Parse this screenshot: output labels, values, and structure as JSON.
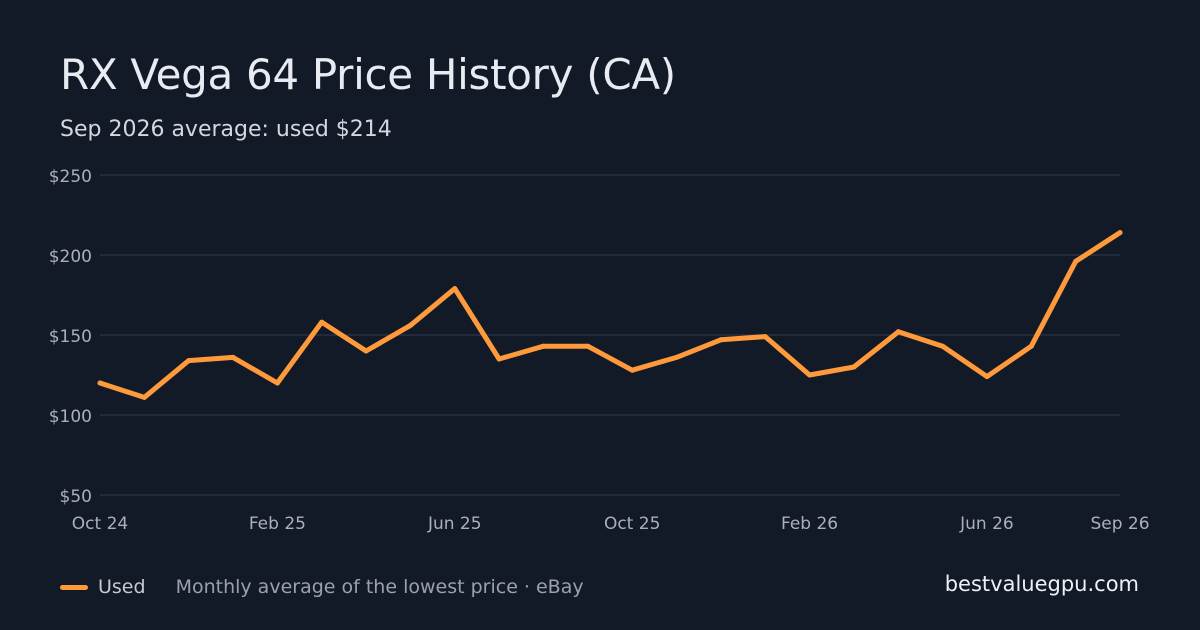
{
  "header": {
    "title": "RX Vega 64 Price History (CA)",
    "subtitle": "Sep 2026 average: used $214"
  },
  "legend": {
    "series_label": "Used",
    "note": "Monthly average of the lowest price · eBay"
  },
  "footer": {
    "site": "bestvaluegpu.com"
  },
  "colors": {
    "background": "#131a27",
    "line": "#ff9a3c",
    "grid": "#283042",
    "tick_text": "#aab0bb"
  },
  "chart_data": {
    "type": "line",
    "title": "RX Vega 64 Price History (CA)",
    "subtitle": "Sep 2026 average: used $214",
    "x": [
      "2024-10",
      "2024-11",
      "2024-12",
      "2025-01",
      "2025-02",
      "2025-03",
      "2025-04",
      "2025-05",
      "2025-06",
      "2025-07",
      "2025-08",
      "2025-09",
      "2025-10",
      "2025-11",
      "2025-12",
      "2026-01",
      "2026-02",
      "2026-03",
      "2026-04",
      "2026-05",
      "2026-06",
      "2026-07",
      "2026-08",
      "2026-09"
    ],
    "x_tick_labels": [
      {
        "x": "2024-10",
        "label": "Oct 24"
      },
      {
        "x": "2025-02",
        "label": "Feb 25"
      },
      {
        "x": "2025-06",
        "label": "Jun 25"
      },
      {
        "x": "2025-10",
        "label": "Oct 25"
      },
      {
        "x": "2026-02",
        "label": "Feb 26"
      },
      {
        "x": "2026-06",
        "label": "Jun 26"
      },
      {
        "x": "2026-09",
        "label": "Sep 26"
      }
    ],
    "y_ticks": [
      50,
      100,
      150,
      200,
      250
    ],
    "y_tick_labels": [
      "$50",
      "$100",
      "$150",
      "$200",
      "$250"
    ],
    "ylim": [
      50,
      250
    ],
    "grid": true,
    "legend_position": "bottom-left",
    "series": [
      {
        "name": "Used",
        "color": "#ff9a3c",
        "values": [
          120,
          111,
          134,
          136,
          120,
          158,
          140,
          156,
          179,
          135,
          143,
          143,
          128,
          136,
          147,
          149,
          125,
          130,
          152,
          143,
          124,
          143,
          196,
          214
        ]
      }
    ]
  }
}
